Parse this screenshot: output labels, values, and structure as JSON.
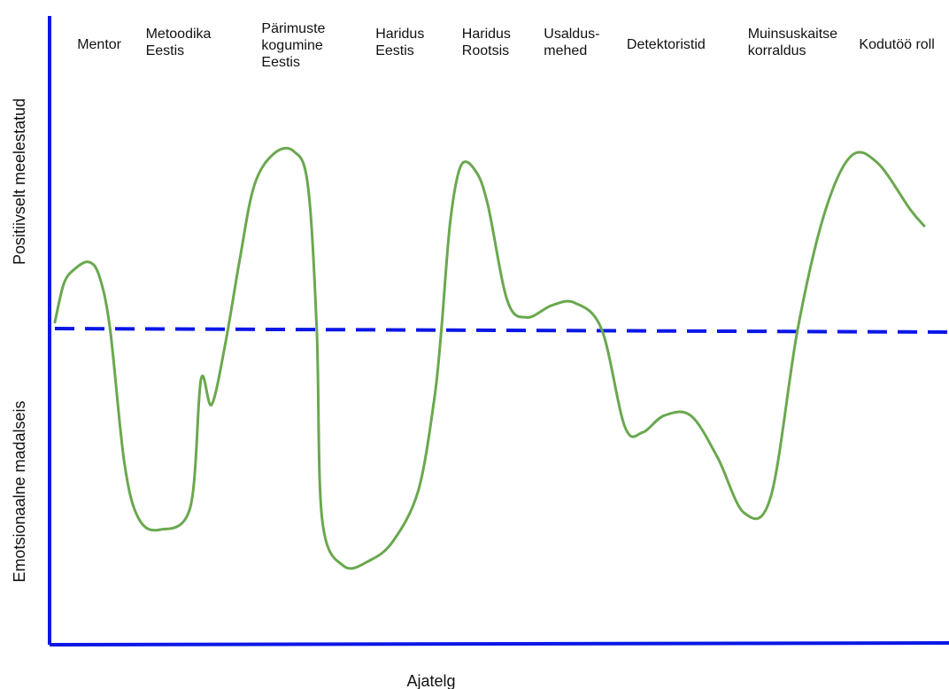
{
  "chart_data": {
    "type": "line",
    "title": "",
    "xlabel": "Ajatelg",
    "ylabel_top": "Positiivselt meelestatud",
    "ylabel_bottom": "Emotsionaalne madalseis",
    "x_range": [
      0,
      100
    ],
    "ylim": [
      -100,
      100
    ],
    "baseline": 0,
    "grid": false,
    "legend": "none",
    "colors": {
      "axis": "#0a17e6",
      "baseline": "#0a17e6",
      "line": "#6aa84f"
    },
    "phases": [
      {
        "label_lines": [
          "Mentor"
        ],
        "x": 2.7
      },
      {
        "label_lines": [
          "Metoodika",
          "Eestis"
        ],
        "x": 10.4
      },
      {
        "label_lines": [
          "Pärimuste",
          "kogumine",
          "Eestis"
        ],
        "x": 23.4
      },
      {
        "label_lines": [
          "Haridus",
          "Eestis"
        ],
        "x": 36.2
      },
      {
        "label_lines": [
          "Haridus",
          "Rootsis"
        ],
        "x": 45.9
      },
      {
        "label_lines": [
          "Usaldus-",
          "mehed"
        ],
        "x": 55.1
      },
      {
        "label_lines": [
          "Detektoristid"
        ],
        "x": 64.4
      },
      {
        "label_lines": [
          "Muinsuskaitse",
          "korraldus"
        ],
        "x": 78.0
      },
      {
        "label_lines": [
          "Kodutöö roll"
        ],
        "x": 90.5
      }
    ],
    "series": [
      {
        "values": [
          {
            "x": 0.2,
            "y": 3
          },
          {
            "x": 1.2,
            "y": 19
          },
          {
            "x": 2.4,
            "y": 25
          },
          {
            "x": 4.0,
            "y": 28
          },
          {
            "x": 5.2,
            "y": 22
          },
          {
            "x": 6.4,
            "y": 0
          },
          {
            "x": 8.0,
            "y": -48
          },
          {
            "x": 9.6,
            "y": -68
          },
          {
            "x": 12.0,
            "y": -72
          },
          {
            "x": 15.4,
            "y": -64
          },
          {
            "x": 16.6,
            "y": -18
          },
          {
            "x": 17.8,
            "y": -27
          },
          {
            "x": 19.4,
            "y": -4
          },
          {
            "x": 21.0,
            "y": 30
          },
          {
            "x": 22.6,
            "y": 60
          },
          {
            "x": 24.8,
            "y": 73
          },
          {
            "x": 27.0,
            "y": 74
          },
          {
            "x": 28.6,
            "y": 60
          },
          {
            "x": 29.6,
            "y": 0
          },
          {
            "x": 30.2,
            "y": -68
          },
          {
            "x": 32.6,
            "y": -85
          },
          {
            "x": 35.6,
            "y": -83
          },
          {
            "x": 38.2,
            "y": -76
          },
          {
            "x": 41.0,
            "y": -58
          },
          {
            "x": 42.8,
            "y": -25
          },
          {
            "x": 43.6,
            "y": 0
          },
          {
            "x": 44.6,
            "y": 45
          },
          {
            "x": 45.8,
            "y": 68
          },
          {
            "x": 47.4,
            "y": 66
          },
          {
            "x": 48.8,
            "y": 52
          },
          {
            "x": 51.0,
            "y": 12
          },
          {
            "x": 53.2,
            "y": 5
          },
          {
            "x": 56.0,
            "y": 10
          },
          {
            "x": 58.6,
            "y": 11
          },
          {
            "x": 61.6,
            "y": 0
          },
          {
            "x": 64.2,
            "y": -35
          },
          {
            "x": 66.2,
            "y": -37
          },
          {
            "x": 68.6,
            "y": -31
          },
          {
            "x": 71.6,
            "y": -31
          },
          {
            "x": 74.6,
            "y": -46
          },
          {
            "x": 77.6,
            "y": -66
          },
          {
            "x": 80.6,
            "y": -60
          },
          {
            "x": 83.6,
            "y": 0
          },
          {
            "x": 86.6,
            "y": 48
          },
          {
            "x": 89.6,
            "y": 72
          },
          {
            "x": 92.6,
            "y": 69
          },
          {
            "x": 96.2,
            "y": 50
          },
          {
            "x": 97.8,
            "y": 43
          }
        ]
      }
    ]
  }
}
